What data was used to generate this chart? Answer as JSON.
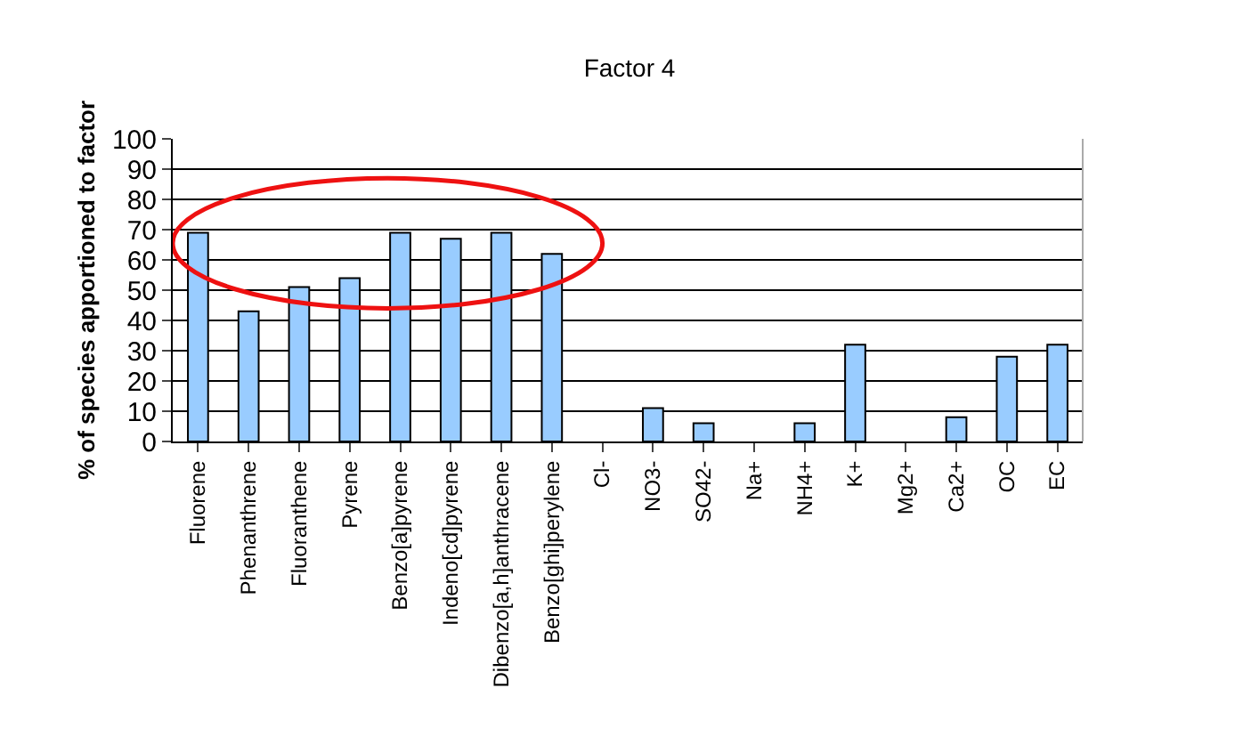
{
  "chart_data": {
    "type": "bar",
    "title": "Factor 4",
    "ylabel": "% of species apportioned to factor",
    "categories": [
      "Fluorene",
      "Phenanthrene",
      "Fluoranthene",
      "Pyrene",
      "Benzo[a]pyrene",
      "Indeno[cd]pyrene",
      "Dibenzo[a,h]anthracene",
      "Benzo[ghi]perylene",
      "Cl-",
      "NO3-",
      "SO42-",
      "Na+",
      "NH4+",
      "K+",
      "Mg2+",
      "Ca2+",
      "OC",
      "EC"
    ],
    "values": [
      69,
      43,
      51,
      54,
      69,
      67,
      69,
      62,
      0,
      11,
      6,
      0,
      6,
      32,
      0,
      8,
      28,
      32
    ],
    "color": "#99ccff",
    "ylim": [
      0,
      100
    ],
    "yticks": [
      0,
      10,
      20,
      30,
      40,
      50,
      60,
      70,
      80,
      90,
      100
    ],
    "grid": "y"
  }
}
